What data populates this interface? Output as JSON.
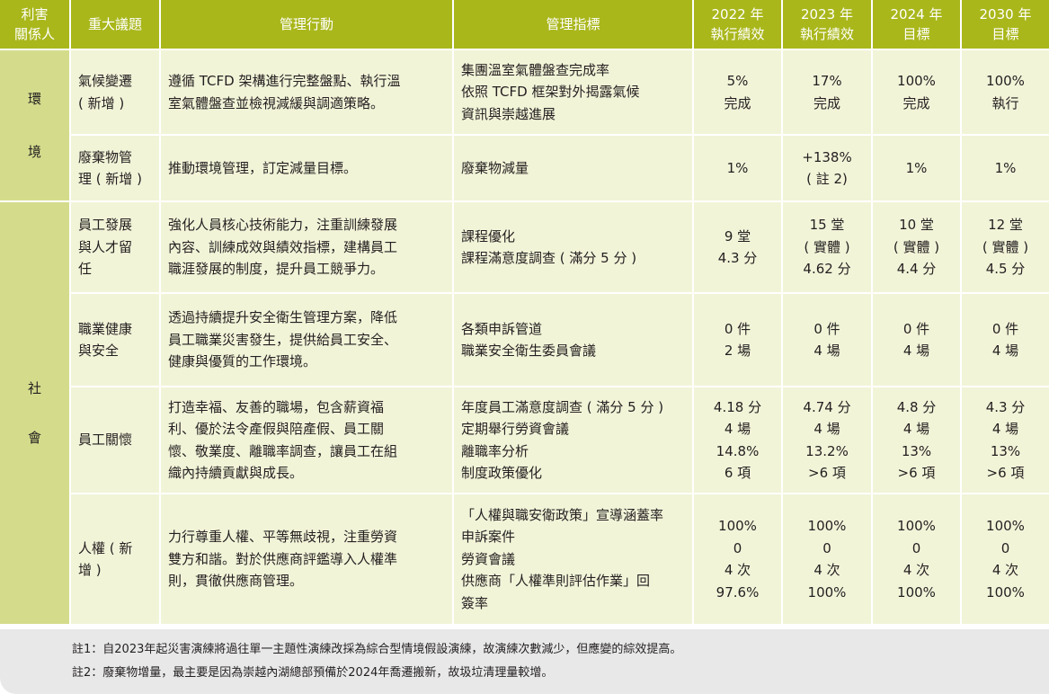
{
  "headers": [
    [
      "利害",
      "關係人"
    ],
    [
      "重大議題"
    ],
    [
      "管理行動"
    ],
    [
      "管理指標"
    ],
    [
      "2022 年",
      "執行績效"
    ],
    [
      "2023 年",
      "執行績效"
    ],
    [
      "2024 年",
      "目標"
    ],
    [
      "2030 年",
      "目標"
    ]
  ],
  "groups": [
    {
      "stakeholder": [
        "環",
        "境"
      ],
      "rows": [
        {
          "issue": [
            "氣候變遷",
            "( 新增 )"
          ],
          "action": [
            "遵循 TCFD 架構進行完整盤點、執行溫",
            "室氣體盤查並檢視減緩與調適策略。"
          ],
          "indicators": [
            "集團溫室氣體盤查完成率",
            "依照 TCFD 框架對外揭露氣候",
            "資訊與崇越進展"
          ],
          "y2022": [
            "5%",
            "完成"
          ],
          "y2023": [
            "17%",
            "完成"
          ],
          "y2024": [
            "100%",
            "完成"
          ],
          "y2030": [
            "100%",
            "執行"
          ]
        },
        {
          "issue": [
            "廢棄物管",
            "理 ( 新增 )"
          ],
          "action": [
            "推動環境管理，訂定減量目標。"
          ],
          "indicators": [
            "廢棄物減量"
          ],
          "y2022": [
            "1%"
          ],
          "y2023": [
            "+138%",
            "( 註 2)"
          ],
          "y2024": [
            "1%"
          ],
          "y2030": [
            "1%"
          ]
        }
      ]
    },
    {
      "stakeholder": [
        "社",
        "會"
      ],
      "rows": [
        {
          "issue": [
            "員工發展",
            "與人才留",
            "任"
          ],
          "action": [
            "強化人員核心技術能力，注重訓練發展",
            "內容、訓練成效與績效指標，建構員工",
            "職涯發展的制度，提升員工競爭力。"
          ],
          "indicators": [
            "課程優化",
            "課程滿意度調查 ( 滿分 5 分 )"
          ],
          "y2022": [
            "9 堂",
            "4.3 分"
          ],
          "y2023": [
            "15 堂",
            "( 實體 )",
            "4.62 分"
          ],
          "y2024": [
            "10 堂",
            "( 實體 )",
            "4.4 分"
          ],
          "y2030": [
            "12 堂",
            "( 實體 )",
            "4.5 分"
          ]
        },
        {
          "issue": [
            "職業健康",
            "與安全"
          ],
          "action": [
            "透過持續提升安全衛生管理方案，降低",
            "員工職業災害發生，提供給員工安全、",
            "健康與優質的工作環境。"
          ],
          "indicators": [
            "各類申訴管道",
            "職業安全衛生委員會議"
          ],
          "y2022": [
            "0 件",
            "2 場"
          ],
          "y2023": [
            "0 件",
            "4 場"
          ],
          "y2024": [
            "0 件",
            "4 場"
          ],
          "y2030": [
            "0 件",
            "4 場"
          ]
        },
        {
          "issue": [
            "員工關懷"
          ],
          "action": [
            "打造幸福、友善的職場，包含薪資福",
            "利、優於法令產假與陪產假、員工關",
            "懷、敬業度、離職率調查，讓員工在組",
            "織內持續貢獻與成長。"
          ],
          "indicators": [
            "年度員工滿意度調查 ( 滿分 5 分 )",
            "定期舉行勞資會議",
            "離職率分析",
            "制度政策優化"
          ],
          "y2022": [
            "4.18 分",
            "4 場",
            "14.8%",
            "6 項"
          ],
          "y2023": [
            "4.74 分",
            "4 場",
            "13.2%",
            ">6 項"
          ],
          "y2024": [
            "4.8 分",
            "4 場",
            "13%",
            ">6 項"
          ],
          "y2030": [
            "4.3 分",
            "4 場",
            "13%",
            ">6 項"
          ]
        },
        {
          "issue": [
            "人權 ( 新",
            "增 )"
          ],
          "action": [
            "力行尊重人權、平等無歧視，注重勞資",
            "雙方和諧。對於供應商評鑑導入人權準",
            "則，貫徹供應商管理。"
          ],
          "indicators": [
            "「人權與職安衛政策」宣導涵蓋率",
            "申訴案件",
            "勞資會議",
            "供應商「人權準則評估作業」回",
            "簽率"
          ],
          "y2022": [
            "100%",
            "0",
            "4 次",
            "97.6%"
          ],
          "y2023": [
            "100%",
            "0",
            "4 次",
            "100%"
          ],
          "y2024": [
            "100%",
            "0",
            "4 次",
            "100%"
          ],
          "y2030": [
            "100%",
            "0",
            "4 次",
            "100%"
          ]
        }
      ]
    }
  ],
  "notes": [
    "註1：自2023年起災害演練將過往單一主題性演練改採為綜合型情境假設演練，故演練次數減少，但應變的綜效提高。",
    "註2：廢棄物增量，最主要是因為崇越內湖總部預備於2024年喬遷搬新，故圾垃清理量較增。"
  ]
}
